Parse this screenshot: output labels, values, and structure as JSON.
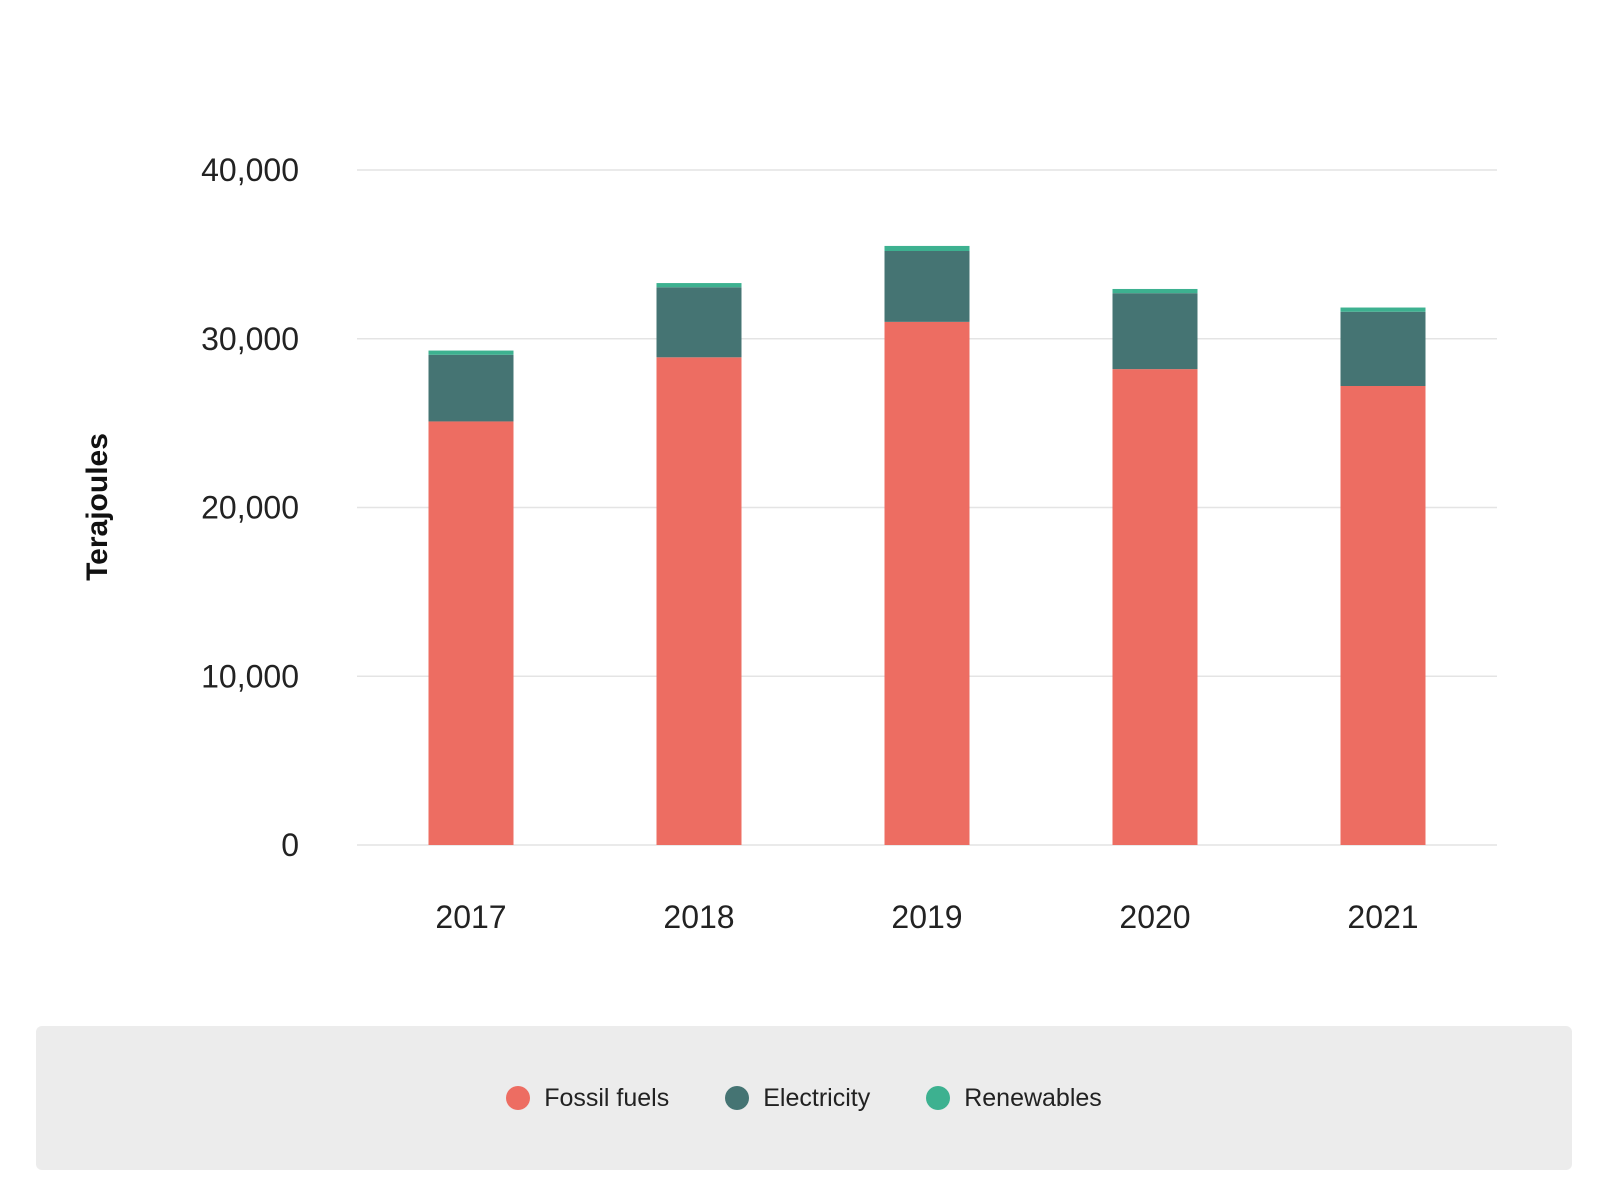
{
  "chart_data": {
    "type": "bar",
    "stacked": true,
    "categories": [
      "2017",
      "2018",
      "2019",
      "2020",
      "2021"
    ],
    "series": [
      {
        "name": "Fossil fuels",
        "color": "#ED6D62",
        "values": [
          25100,
          28900,
          31000,
          28200,
          27200
        ]
      },
      {
        "name": "Electricity",
        "color": "#457473",
        "values": [
          3950,
          4150,
          4200,
          4500,
          4400
        ]
      },
      {
        "name": "Renewables",
        "color": "#3DB190",
        "values": [
          250,
          250,
          300,
          250,
          250
        ]
      }
    ],
    "ylabel": "Terajoules",
    "xlabel": "",
    "ylim": [
      0,
      40000
    ],
    "yticks": [
      0,
      10000,
      20000,
      30000,
      40000
    ],
    "ytick_labels": [
      "0",
      "10,000",
      "20,000",
      "30,000",
      "40,000"
    ],
    "grid": true,
    "legend_position": "bottom"
  }
}
